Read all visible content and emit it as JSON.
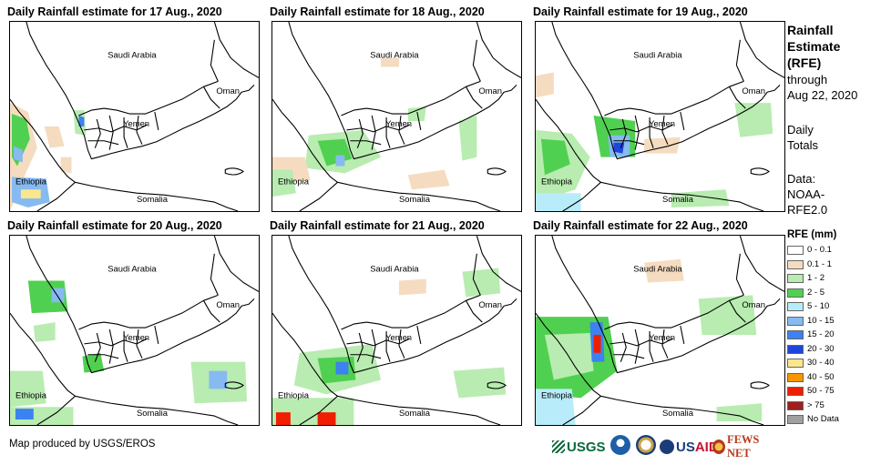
{
  "panels": [
    {
      "title": "Daily Rainfall estimate for 17 Aug., 2020",
      "day": "17"
    },
    {
      "title": "Daily Rainfall estimate for 18 Aug., 2020",
      "day": "18"
    },
    {
      "title": "Daily Rainfall estimate for 19 Aug., 2020",
      "day": "19"
    },
    {
      "title": "Daily Rainfall estimate for 20 Aug., 2020",
      "day": "20"
    },
    {
      "title": "Daily Rainfall estimate for 21 Aug., 2020",
      "day": "21"
    },
    {
      "title": "Daily Rainfall estimate for 22 Aug., 2020",
      "day": "22"
    }
  ],
  "map_labels": {
    "saudi_arabia": "Saudi Arabia",
    "oman": "Oman",
    "yemen": "Yemen",
    "ethiopia": "Ethiopia",
    "somalia": "Somalia"
  },
  "side": {
    "title_line1": "Rainfall",
    "title_line2": "Estimate",
    "title_line3": "(RFE)",
    "through": "through",
    "date": "Aug 22, 2020",
    "daily_line1": "Daily",
    "daily_line2": "Totals",
    "data_line1": "Data:",
    "data_line2": "NOAA-",
    "data_line3": "RFE2.0"
  },
  "legend": {
    "title": "RFE (mm)",
    "items": [
      {
        "label": "0 - 0.1",
        "color": "#ffffff"
      },
      {
        "label": "0.1 - 1",
        "color": "#f5dcc0"
      },
      {
        "label": "1 - 2",
        "color": "#b8ecb0"
      },
      {
        "label": "2 - 5",
        "color": "#50d050"
      },
      {
        "label": "5 - 10",
        "color": "#b9ecfa"
      },
      {
        "label": "10 - 15",
        "color": "#86baf0"
      },
      {
        "label": "15 - 20",
        "color": "#3c82f0"
      },
      {
        "label": "20 - 30",
        "color": "#1e46dc"
      },
      {
        "label": "30 - 40",
        "color": "#fae68c"
      },
      {
        "label": "40 - 50",
        "color": "#fa9600"
      },
      {
        "label": "50 - 75",
        "color": "#f01e00"
      },
      {
        "label": "> 75",
        "color": "#a01e1e"
      },
      {
        "label": "No Data",
        "color": "#a0a0a0"
      }
    ]
  },
  "credit": "Map produced by USGS/EROS",
  "logos": {
    "usgs": "USGS",
    "usaid_us": "US",
    "usaid_aid": "AID",
    "fews": "FEWS NET"
  }
}
